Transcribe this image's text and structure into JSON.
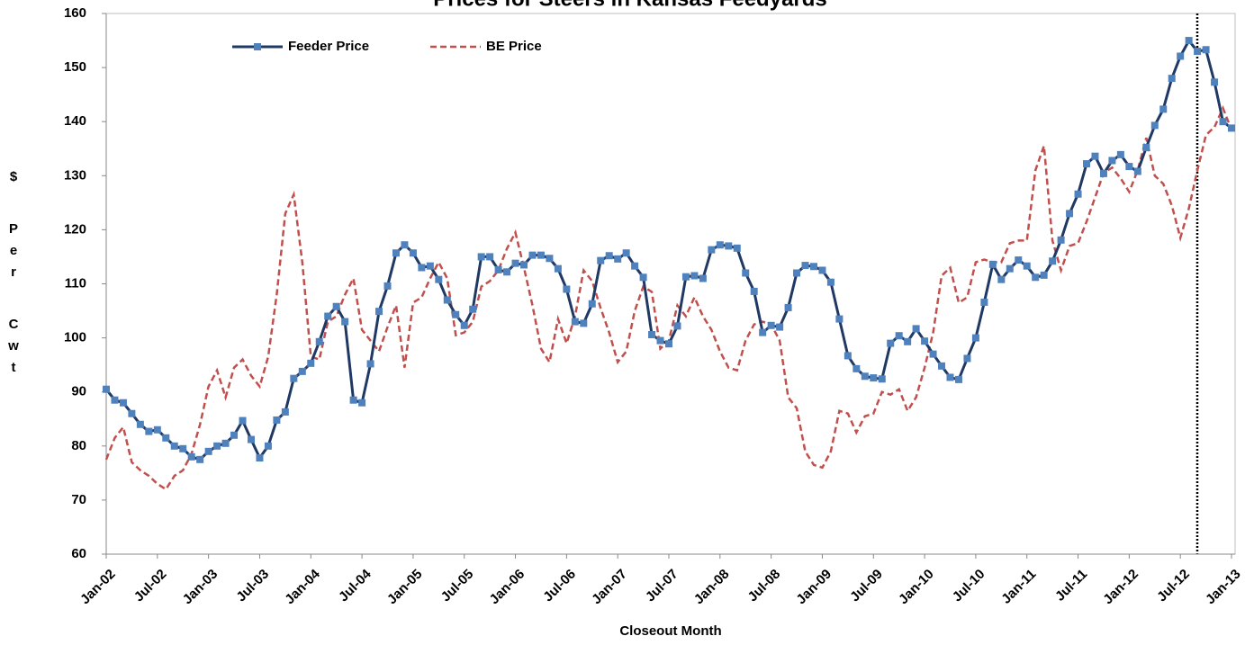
{
  "chart_data": {
    "type": "line",
    "title": "Prices for Steers in Kansas Feedyards",
    "x_label": "Closeout Month",
    "y_label": "$ Per Cwt",
    "categories": [
      "Jan-02",
      null,
      null,
      null,
      null,
      null,
      "Jul-02",
      null,
      null,
      null,
      null,
      null,
      "Jan-03",
      null,
      null,
      null,
      null,
      null,
      "Jul-03",
      null,
      null,
      null,
      null,
      null,
      "Jan-04",
      null,
      null,
      null,
      null,
      null,
      "Jul-04",
      null,
      null,
      null,
      null,
      null,
      "Jan-05",
      null,
      null,
      null,
      null,
      null,
      "Jul-05",
      null,
      null,
      null,
      null,
      null,
      "Jan-06",
      null,
      null,
      null,
      null,
      null,
      "Jul-06",
      null,
      null,
      null,
      null,
      null,
      "Jan-07",
      null,
      null,
      null,
      null,
      null,
      "Jul-07",
      null,
      null,
      null,
      null,
      null,
      "Jan-08",
      null,
      null,
      null,
      null,
      null,
      "Jul-08",
      null,
      null,
      null,
      null,
      null,
      "Jan-09",
      null,
      null,
      null,
      null,
      null,
      "Jul-09",
      null,
      null,
      null,
      null,
      null,
      "Jan-10",
      null,
      null,
      null,
      null,
      null,
      "Jul-10",
      null,
      null,
      null,
      null,
      null,
      "Jan-11",
      null,
      null,
      null,
      null,
      null,
      "Jul-11",
      null,
      null,
      null,
      null,
      null,
      "Jan-12",
      null,
      null,
      null,
      null,
      null,
      "Jul-12",
      null,
      null,
      null,
      null,
      null,
      "Jan-13"
    ],
    "series": [
      {
        "name": "Feeder Price",
        "color": "#1f3864",
        "marker_color": "#4f81bd",
        "dash": false,
        "markers": true,
        "values": [
          90.5,
          88.5,
          88,
          86,
          84,
          82.7,
          83,
          81.5,
          80,
          79.5,
          78,
          77.5,
          79,
          80,
          80.5,
          82,
          84.7,
          81.2,
          77.8,
          80,
          84.8,
          86.3,
          92.5,
          93.8,
          95.3,
          99.3,
          104,
          105.8,
          103,
          88.5,
          88,
          95.2,
          104.9,
          109.6,
          115.7,
          117.2,
          115.7,
          113,
          113.3,
          110.8,
          107,
          104.3,
          102.3,
          105.3,
          115,
          115,
          112.6,
          112.2,
          113.8,
          113.5,
          115.3,
          115.3,
          114.7,
          112.8,
          109,
          103,
          102.7,
          106.3,
          114.3,
          115.2,
          114.6,
          115.7,
          113.3,
          111.2,
          100.6,
          99.5,
          98.9,
          102.2,
          111.3,
          111.5,
          111,
          116.3,
          117.2,
          117,
          116.6,
          112,
          108.6,
          101,
          102.3,
          102,
          105.6,
          112,
          113.4,
          113.2,
          112.5,
          110.3,
          103.5,
          96.7,
          94.3,
          92.9,
          92.6,
          92.4,
          99,
          100.4,
          99.3,
          101.7,
          99.4,
          97,
          94.8,
          92.7,
          92.3,
          96.2,
          100,
          106.6,
          113.6,
          110.8,
          112.8,
          114.4,
          113.3,
          111.2,
          111.6,
          114.2,
          118.1,
          123,
          126.6,
          132.2,
          133.6,
          130.4,
          132.8,
          133.9,
          131.7,
          130.8,
          135.2,
          139.3,
          142.3,
          148,
          152.1,
          155,
          153,
          153.3,
          147.3,
          140,
          138.8
        ]
      },
      {
        "name": "BE Price",
        "color": "#c0504d",
        "dash": true,
        "markers": false,
        "values": [
          77.5,
          81.5,
          83.5,
          77,
          75.5,
          74.5,
          73,
          72,
          74.5,
          75.5,
          78.5,
          84,
          91,
          94,
          89,
          94.5,
          96,
          93,
          91,
          96.5,
          108,
          123,
          126.5,
          114,
          96.5,
          96,
          103,
          104,
          108,
          111,
          101.5,
          99.5,
          97.5,
          102,
          106,
          94.5,
          106.5,
          107.5,
          111,
          114,
          111,
          100.5,
          101,
          103,
          109.5,
          110.5,
          112.5,
          116.5,
          119.5,
          113,
          106,
          98,
          95.5,
          103.5,
          99,
          104,
          112.5,
          110.5,
          105.5,
          101,
          95.5,
          97.5,
          105,
          109.5,
          108.5,
          98,
          99.5,
          106,
          104,
          107.5,
          104,
          101.5,
          97.5,
          94.5,
          94,
          99.5,
          102.5,
          103,
          102.5,
          99.5,
          89,
          87,
          79,
          76.5,
          76,
          79,
          86.5,
          86,
          82.5,
          85.5,
          86,
          90,
          89.5,
          90.5,
          86.5,
          89,
          94.5,
          101,
          111.5,
          113,
          106.5,
          107.5,
          114,
          114.5,
          114,
          114,
          117.5,
          118,
          118,
          131,
          135.5,
          118,
          112.5,
          117,
          117.5,
          121.5,
          126,
          130.5,
          131.5,
          129.5,
          127,
          131,
          137,
          130,
          128.5,
          124.5,
          118.5,
          124,
          131,
          137.5,
          139,
          142.5,
          138.5
        ]
      }
    ],
    "ylim": [
      60,
      160
    ],
    "yticks": [
      60,
      70,
      80,
      90,
      100,
      110,
      120,
      130,
      140,
      150,
      160
    ],
    "grid": false,
    "legend": "top-left"
  }
}
